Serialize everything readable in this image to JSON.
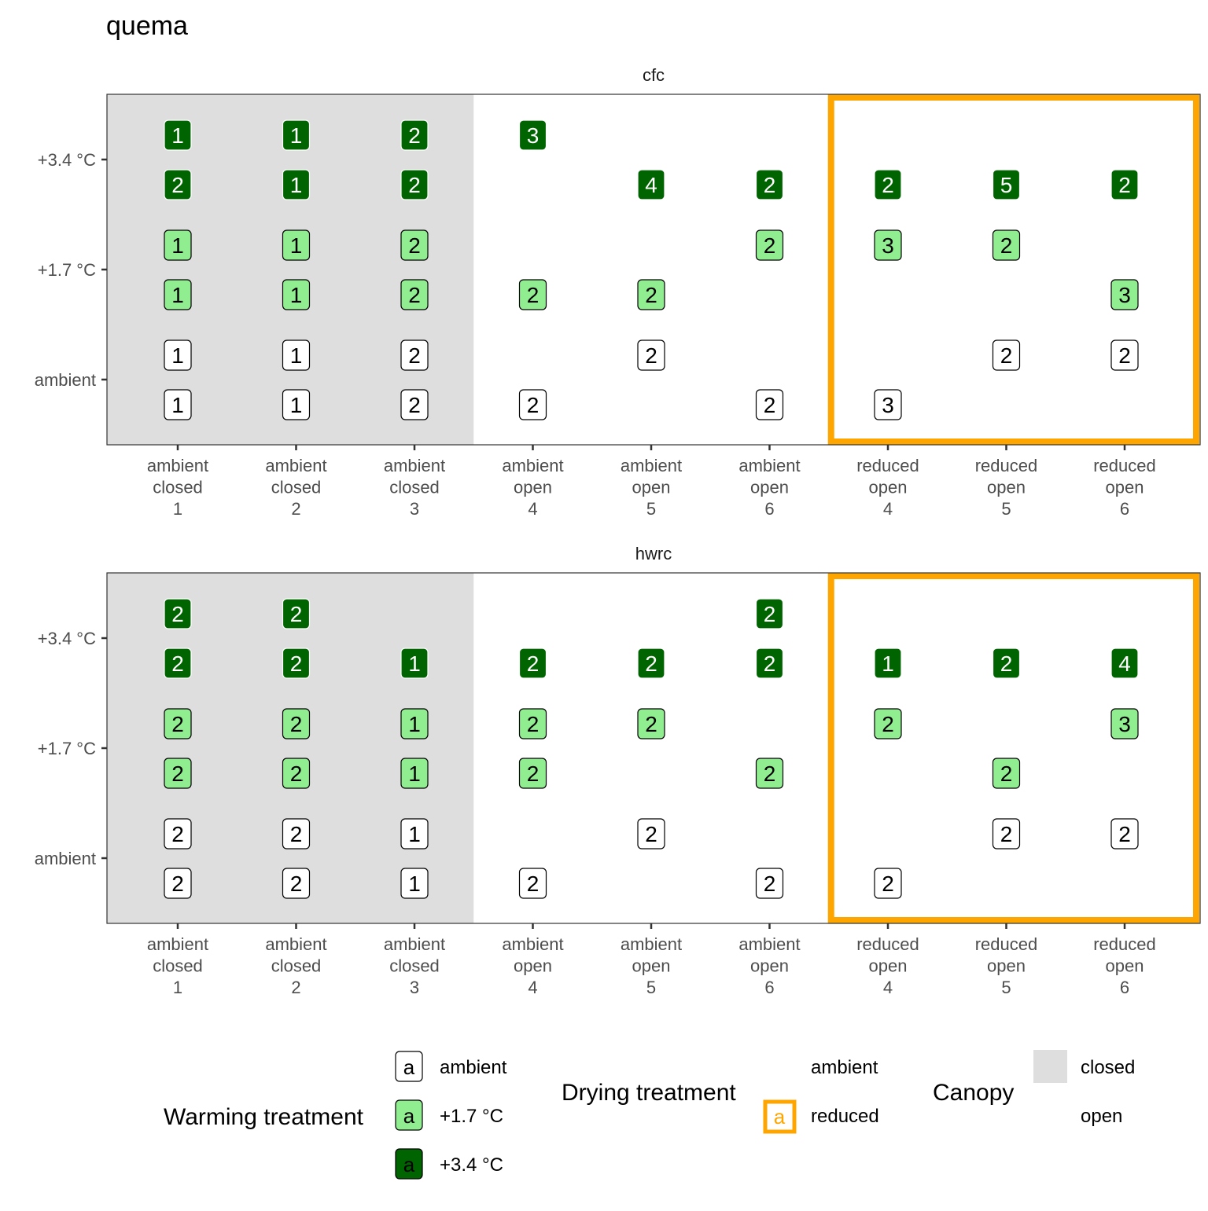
{
  "chart_data": {
    "type": "faceted label plot",
    "title": "quema",
    "x_categories": [
      {
        "drying": "ambient",
        "canopy": "closed",
        "block": "1"
      },
      {
        "drying": "ambient",
        "canopy": "closed",
        "block": "2"
      },
      {
        "drying": "ambient",
        "canopy": "closed",
        "block": "3"
      },
      {
        "drying": "ambient",
        "canopy": "open",
        "block": "4"
      },
      {
        "drying": "ambient",
        "canopy": "open",
        "block": "5"
      },
      {
        "drying": "ambient",
        "canopy": "open",
        "block": "6"
      },
      {
        "drying": "reduced",
        "canopy": "open",
        "block": "4"
      },
      {
        "drying": "reduced",
        "canopy": "open",
        "block": "5"
      },
      {
        "drying": "reduced",
        "canopy": "open",
        "block": "6"
      }
    ],
    "y_levels": [
      "ambient",
      "+1.7 °C",
      "+3.4 °C"
    ],
    "facets": [
      {
        "name": "cfc",
        "rows": [
          {
            "warming": "+3.4 °C",
            "sub": "upper",
            "values": [
              "1",
              "1",
              "2",
              "3",
              "",
              "",
              "",
              "",
              ""
            ]
          },
          {
            "warming": "+3.4 °C",
            "sub": "lower",
            "values": [
              "2",
              "1",
              "2",
              "",
              "4",
              "2",
              "2",
              "5",
              "2"
            ]
          },
          {
            "warming": "+1.7 °C",
            "sub": "upper",
            "values": [
              "1",
              "1",
              "2",
              "",
              "",
              "2",
              "3",
              "2",
              ""
            ]
          },
          {
            "warming": "+1.7 °C",
            "sub": "lower",
            "values": [
              "1",
              "1",
              "2",
              "2",
              "2",
              "",
              "",
              "",
              "3"
            ]
          },
          {
            "warming": "ambient",
            "sub": "upper",
            "values": [
              "1",
              "1",
              "2",
              "",
              "2",
              "",
              "",
              "2",
              "2"
            ]
          },
          {
            "warming": "ambient",
            "sub": "lower",
            "values": [
              "1",
              "1",
              "2",
              "2",
              "",
              "2",
              "3",
              "",
              ""
            ]
          }
        ]
      },
      {
        "name": "hwrc",
        "rows": [
          {
            "warming": "+3.4 °C",
            "sub": "upper",
            "values": [
              "2",
              "2",
              "",
              "",
              "",
              "2",
              "",
              "",
              ""
            ]
          },
          {
            "warming": "+3.4 °C",
            "sub": "lower",
            "values": [
              "2",
              "2",
              "1",
              "2",
              "2",
              "2",
              "1",
              "2",
              "4"
            ]
          },
          {
            "warming": "+1.7 °C",
            "sub": "upper",
            "values": [
              "2",
              "2",
              "1",
              "2",
              "2",
              "",
              "2",
              "",
              "3"
            ]
          },
          {
            "warming": "+1.7 °C",
            "sub": "lower",
            "values": [
              "2",
              "2",
              "1",
              "2",
              "",
              "2",
              "",
              "2",
              ""
            ]
          },
          {
            "warming": "ambient",
            "sub": "upper",
            "values": [
              "2",
              "2",
              "1",
              "",
              "2",
              "",
              "",
              "2",
              "2"
            ]
          },
          {
            "warming": "ambient",
            "sub": "lower",
            "values": [
              "2",
              "2",
              "1",
              "2",
              "",
              "2",
              "2",
              "",
              ""
            ]
          }
        ]
      }
    ],
    "warming_colors": {
      "ambient": "#ffffff",
      "+1.7 °C": "#90ee90",
      "+3.4 °C": "#006400"
    },
    "label_text_colors": {
      "ambient": "#000000",
      "+1.7 °C": "#000000",
      "+3.4 °C": "#ffffff"
    },
    "canopy_colors": {
      "closed": "#dedede",
      "open": "#ffffff"
    },
    "drying_highlight_color": "#ffa500",
    "legends": {
      "warming": {
        "title": "Warming treatment",
        "key_glyph": "a",
        "items": [
          "ambient",
          "+1.7 °C",
          "+3.4 °C"
        ]
      },
      "drying": {
        "title": "Drying treatment",
        "key_glyph": "a",
        "items": [
          "ambient",
          "reduced"
        ]
      },
      "canopy": {
        "title": "Canopy",
        "items": [
          "closed",
          "open"
        ]
      }
    },
    "legend_position": "bottom"
  }
}
